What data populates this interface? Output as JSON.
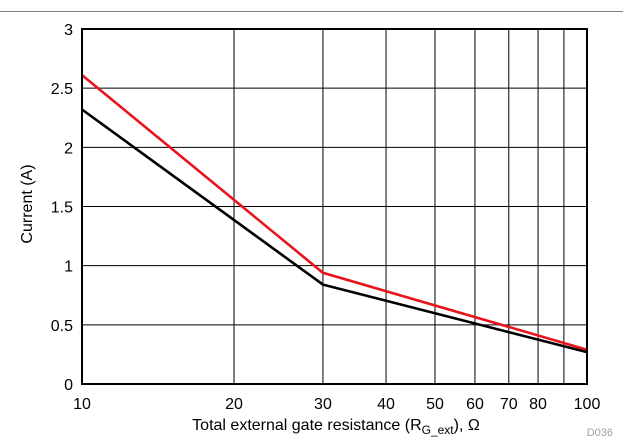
{
  "chart_data": {
    "type": "line",
    "x_scale": "log",
    "xlim": [
      10,
      100
    ],
    "ylim": [
      0,
      3
    ],
    "x_ticks": [
      10,
      20,
      30,
      40,
      50,
      60,
      70,
      80,
      100
    ],
    "x_tick_labels": [
      "10",
      "20",
      "30",
      "40",
      "50",
      "60",
      "70",
      "80",
      "100"
    ],
    "y_ticks": [
      0,
      0.5,
      1,
      1.5,
      2,
      2.5,
      3
    ],
    "y_tick_labels": [
      "0",
      "0.5",
      "1",
      "1.5",
      "2",
      "2.5",
      "3"
    ],
    "x_gridlines": [
      20,
      30,
      40,
      50,
      60,
      70,
      80,
      90
    ],
    "grid": true,
    "ylabel": "Current (A)",
    "xlabel": {
      "main": "Total external gate resistance (R",
      "subscript": "G_ext",
      "suffix": "), Ω"
    },
    "series": [
      {
        "color": "#e8141c",
        "x": [
          10,
          30,
          100
        ],
        "y": [
          2.61,
          0.94,
          0.29
        ]
      },
      {
        "color": "#000000",
        "x": [
          10,
          30,
          100
        ],
        "y": [
          2.32,
          0.84,
          0.27
        ]
      }
    ]
  },
  "figure_id": "D036"
}
